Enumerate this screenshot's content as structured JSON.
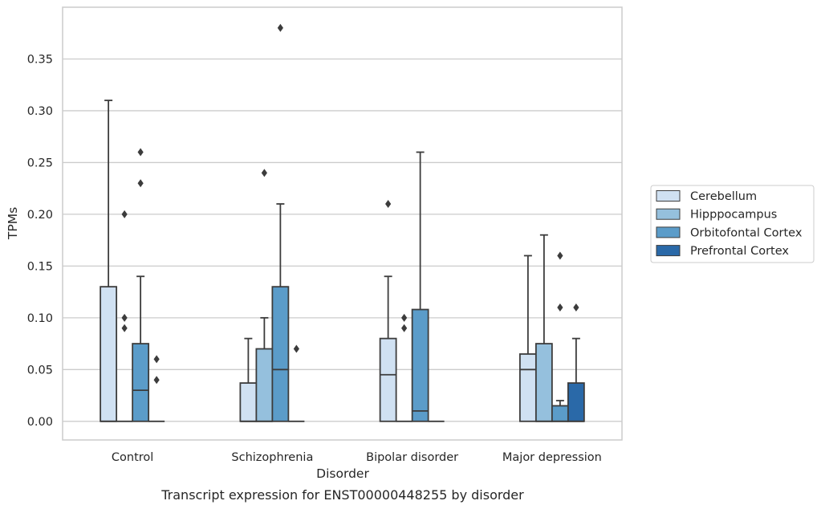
{
  "chart_data": {
    "type": "boxplot",
    "xlabel": "Disorder",
    "ylabel": "TPMs",
    "caption": "Transcript expression for ENST00000448255 by disorder",
    "ylim": [
      -0.018,
      0.4
    ],
    "yticks": [
      "0.00",
      "0.05",
      "0.10",
      "0.15",
      "0.20",
      "0.25",
      "0.30",
      "0.35"
    ],
    "grid": "horizontal",
    "legend_placement": "right",
    "categories": [
      "Control",
      "Schizophrenia",
      "Bipolar disorder",
      "Major depression"
    ],
    "series": [
      {
        "name": "Cerebellum",
        "color": "#d0e1f2"
      },
      {
        "name": "Hipppocampus",
        "color": "#95c0dd"
      },
      {
        "name": "Orbitofontal Cortex",
        "color": "#5b9cc9"
      },
      {
        "name": "Prefrontal Cortex",
        "color": "#2a69a8"
      }
    ],
    "boxes": [
      [
        {
          "q1": 0,
          "median": 0,
          "q3": 0.13,
          "whisker_low": 0,
          "whisker_high": 0.31,
          "outliers": []
        },
        {
          "q1": 0,
          "median": 0,
          "q3": 0,
          "whisker_low": 0,
          "whisker_high": 0,
          "outliers": [
            0.09,
            0.1,
            0.2
          ]
        },
        {
          "q1": 0,
          "median": 0.03,
          "q3": 0.075,
          "whisker_low": 0,
          "whisker_high": 0.14,
          "outliers": [
            0.23,
            0.26
          ]
        },
        {
          "q1": 0,
          "median": 0,
          "q3": 0,
          "whisker_low": 0,
          "whisker_high": 0,
          "outliers": [
            0.04,
            0.06
          ]
        }
      ],
      [
        {
          "q1": 0,
          "median": 0,
          "q3": 0.037,
          "whisker_low": 0,
          "whisker_high": 0.08,
          "outliers": []
        },
        {
          "q1": 0,
          "median": 0,
          "q3": 0.07,
          "whisker_low": 0,
          "whisker_high": 0.1,
          "outliers": [
            0.24
          ]
        },
        {
          "q1": 0,
          "median": 0.05,
          "q3": 0.13,
          "whisker_low": 0,
          "whisker_high": 0.21,
          "outliers": [
            0.38
          ]
        },
        {
          "q1": 0,
          "median": 0,
          "q3": 0,
          "whisker_low": 0,
          "whisker_high": 0,
          "outliers": [
            0.07
          ]
        }
      ],
      [
        {
          "q1": 0,
          "median": 0.045,
          "q3": 0.08,
          "whisker_low": 0,
          "whisker_high": 0.14,
          "outliers": [
            0.21
          ]
        },
        {
          "q1": 0,
          "median": 0,
          "q3": 0,
          "whisker_low": 0,
          "whisker_high": 0,
          "outliers": [
            0.09,
            0.1
          ]
        },
        {
          "q1": 0,
          "median": 0.01,
          "q3": 0.108,
          "whisker_low": 0,
          "whisker_high": 0.26,
          "outliers": []
        },
        {
          "q1": 0,
          "median": 0,
          "q3": 0,
          "whisker_low": 0,
          "whisker_high": 0,
          "outliers": []
        }
      ],
      [
        {
          "q1": 0,
          "median": 0.05,
          "q3": 0.065,
          "whisker_low": 0,
          "whisker_high": 0.16,
          "outliers": []
        },
        {
          "q1": 0,
          "median": 0,
          "q3": 0.075,
          "whisker_low": 0,
          "whisker_high": 0.18,
          "outliers": []
        },
        {
          "q1": 0,
          "median": 0,
          "q3": 0.015,
          "whisker_low": 0,
          "whisker_high": 0.02,
          "outliers": [
            0.11,
            0.16
          ]
        },
        {
          "q1": 0,
          "median": 0,
          "q3": 0.037,
          "whisker_low": 0,
          "whisker_high": 0.08,
          "outliers": [
            0.11
          ]
        }
      ]
    ]
  }
}
